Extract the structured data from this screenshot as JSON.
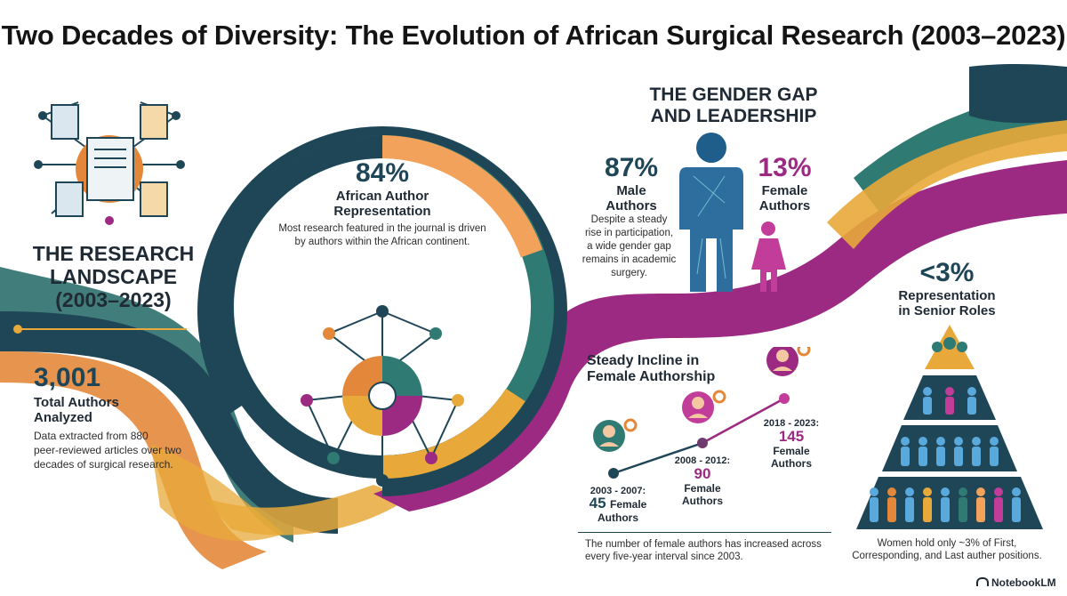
{
  "title": "Two Decades of Diversity: The Evolution of African Surgical Research (2003–2023)",
  "landscape": {
    "heading_line1": "THE RESEARCH",
    "heading_line2": "LANDSCAPE",
    "heading_line3": "(2003–2023)",
    "stat_value": "3,001",
    "stat_label_line1": "Total Authors",
    "stat_label_line2": "Analyzed",
    "desc_line1": "Data extracted from 880",
    "desc_line2": "peer-reviewed articles over two",
    "desc_line3": "decades of surgical research."
  },
  "african": {
    "value": "84%",
    "label_line1": "African Author",
    "label_line2": "Representation",
    "desc_line1": "Most research featured in the journal is driven",
    "desc_line2": "by authors within the African continent.",
    "share": 0.84
  },
  "gender": {
    "heading_line1": "THE GENDER GAP",
    "heading_line2": "AND LEADERSHIP",
    "male_value": "87%",
    "male_label_line1": "Male",
    "male_label_line2": "Authors",
    "female_value": "13%",
    "female_label_line1": "Female",
    "female_label_line2": "Authors",
    "desc_line1": "Despite a steady",
    "desc_line2": "rise in participation,",
    "desc_line3": "a wide gender gap",
    "desc_line4": "remains in academic",
    "desc_line5": "surgery."
  },
  "incline": {
    "heading_line1": "Steady Incline in",
    "heading_line2": "Female Authorship",
    "points": [
      {
        "period": "2003 - 2007:",
        "value": "45",
        "label_a": "Female",
        "label_b": "Authors"
      },
      {
        "period": "2008 - 2012:",
        "value": "90",
        "label_a": "Female",
        "label_b": "Authors"
      },
      {
        "period": "2018 - 2023:",
        "value": "145",
        "label_a": "Female",
        "label_b": "Authors"
      }
    ],
    "desc_line1": "The number of female authors has increased across",
    "desc_line2": "every five-year interval since 2003."
  },
  "senior": {
    "value": "<3%",
    "label_line1": "Representation",
    "label_line2": "in Senior Roles",
    "desc_line1": "Women hold only ~3% of First,",
    "desc_line2": "Corresponding, and Last auther positions."
  },
  "brand": "NotebookLM",
  "icons": [
    "network-documents-icon",
    "network-globe-icon",
    "male-figure-icon",
    "female-figure-icon",
    "woman-avatar-icon",
    "pyramid-people-icon",
    "notebook-logo-icon"
  ],
  "colors": {
    "navy": "#1f4657",
    "teal": "#2f7a72",
    "orange": "#e3883b",
    "magenta": "#9c2a83",
    "gold": "#e8a93a",
    "blue": "#2e6e9e",
    "pink": "#c23d9a"
  }
}
